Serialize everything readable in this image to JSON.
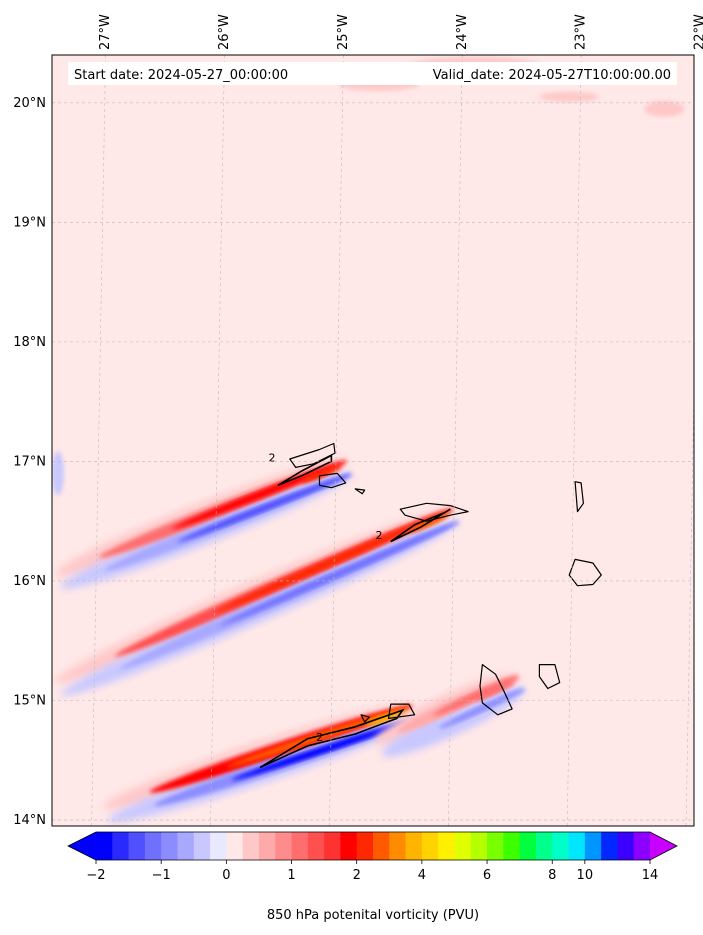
{
  "chart_data": {
    "type": "heatmap",
    "title_left": "Start date: 2024-05-27_00:00:00",
    "title_right": "Valid_date: 2024-05-27T10:00:00.00",
    "x_axis": {
      "range": [
        -27.35,
        -21.95
      ],
      "ticks": [
        {
          "value": -27,
          "label": "27°W"
        },
        {
          "value": -26,
          "label": "26°W"
        },
        {
          "value": -25,
          "label": "25°W"
        },
        {
          "value": -24,
          "label": "24°W"
        },
        {
          "value": -23,
          "label": "23°W"
        },
        {
          "value": -22,
          "label": "22°W"
        }
      ]
    },
    "y_axis": {
      "range": [
        13.95,
        20.4
      ],
      "ticks": [
        {
          "value": 14,
          "label": "14°N"
        },
        {
          "value": 15,
          "label": "15°N"
        },
        {
          "value": 16,
          "label": "16°N"
        },
        {
          "value": 17,
          "label": "17°N"
        },
        {
          "value": 18,
          "label": "18°N"
        },
        {
          "value": 19,
          "label": "19°N"
        },
        {
          "value": 20,
          "label": "20°N"
        }
      ]
    },
    "grid": true,
    "colorbar": {
      "label": "850 hPa potenital vorticity (PVU)",
      "orientation": "horizontal",
      "extend": "both",
      "levels": [
        -2,
        -1.75,
        -1.5,
        -1.25,
        -1,
        -0.75,
        -0.5,
        -0.25,
        0,
        0.25,
        0.5,
        0.75,
        1,
        1.25,
        1.5,
        1.75,
        2,
        2.5,
        3,
        3.5,
        4,
        4.5,
        5,
        5.5,
        6,
        6.5,
        7,
        7.5,
        8,
        9,
        10,
        11,
        12,
        13,
        14
      ],
      "colors": [
        "#0000ff",
        "#2a2aff",
        "#5050ff",
        "#7070ff",
        "#8c8cff",
        "#a8a8ff",
        "#c8c8ff",
        "#e8e8ff",
        "#ffe8e8",
        "#ffc8c8",
        "#ffaaaa",
        "#ff8c8c",
        "#ff6e6e",
        "#ff5050",
        "#ff3232",
        "#ff0000",
        "#ff2800",
        "#ff5a00",
        "#ff8c00",
        "#ffb400",
        "#ffd200",
        "#fff000",
        "#e0ff00",
        "#b4ff00",
        "#78ff00",
        "#3cff00",
        "#00ff3c",
        "#00ff8c",
        "#00ffc8",
        "#00e6ff",
        "#0096ff",
        "#0028ff",
        "#3c00ff",
        "#8c00ff"
      ],
      "under_color": "#0000ff",
      "over_color": "#c800ff",
      "tick_labels": [
        {
          "value": -2,
          "label": "−2"
        },
        {
          "value": -1,
          "label": "−1"
        },
        {
          "value": 0,
          "label": "0"
        },
        {
          "value": 1,
          "label": "1"
        },
        {
          "value": 2,
          "label": "2"
        },
        {
          "value": 4,
          "label": "4"
        },
        {
          "value": 6,
          "label": "6"
        },
        {
          "value": 8,
          "label": "8"
        },
        {
          "value": 10,
          "label": "10"
        },
        {
          "value": 14,
          "label": "14"
        }
      ]
    },
    "background_value": 0.1,
    "features": [
      {
        "name": "wake-santo-antao",
        "island_lon": -24.85,
        "island_lat": 16.95,
        "tail_lon": -27.3,
        "tail_lat": 16.0,
        "positive_peak": 2.2,
        "negative_peak": -1.5
      },
      {
        "name": "wake-sao-nicolau",
        "island_lon": -23.95,
        "island_lat": 16.55,
        "tail_lon": -27.3,
        "tail_lat": 15.1,
        "positive_peak": 2.5,
        "negative_peak": -1.3
      },
      {
        "name": "wake-santiago-fogo",
        "island_lon": -24.3,
        "island_lat": 14.9,
        "tail_lon": -26.9,
        "tail_lat": 14.05,
        "positive_peak": 3.5,
        "negative_peak": -2.0
      },
      {
        "name": "wake-maio",
        "island_lon": -23.4,
        "island_lat": 15.15,
        "tail_lon": -24.6,
        "tail_lat": 14.6,
        "positive_peak": 1.2,
        "negative_peak": -1.0
      }
    ],
    "contour_label": "2",
    "islands": [
      {
        "name": "Santo Antao",
        "points": [
          [
            -25.35,
            17.02
          ],
          [
            -25.1,
            17.1
          ],
          [
            -24.98,
            17.15
          ],
          [
            -24.97,
            17.07
          ],
          [
            -25.15,
            16.98
          ],
          [
            -25.3,
            16.95
          ]
        ]
      },
      {
        "name": "Sao Vicente",
        "points": [
          [
            -25.1,
            16.88
          ],
          [
            -24.95,
            16.9
          ],
          [
            -24.88,
            16.82
          ],
          [
            -25.0,
            16.78
          ],
          [
            -25.1,
            16.8
          ]
        ]
      },
      {
        "name": "Santa Luzia",
        "points": [
          [
            -24.8,
            16.77
          ],
          [
            -24.72,
            16.76
          ],
          [
            -24.74,
            16.73
          ]
        ]
      },
      {
        "name": "Sao Nicolau",
        "points": [
          [
            -24.42,
            16.6
          ],
          [
            -24.2,
            16.65
          ],
          [
            -24.0,
            16.63
          ],
          [
            -23.85,
            16.58
          ],
          [
            -24.0,
            16.55
          ],
          [
            -24.2,
            16.5
          ],
          [
            -24.38,
            16.55
          ]
        ]
      },
      {
        "name": "Sal",
        "points": [
          [
            -22.95,
            16.83
          ],
          [
            -22.9,
            16.82
          ],
          [
            -22.88,
            16.65
          ],
          [
            -22.93,
            16.58
          ]
        ]
      },
      {
        "name": "Boa Vista",
        "points": [
          [
            -22.95,
            16.18
          ],
          [
            -22.8,
            16.15
          ],
          [
            -22.73,
            16.05
          ],
          [
            -22.8,
            15.97
          ],
          [
            -22.93,
            15.96
          ],
          [
            -23.0,
            16.05
          ]
        ]
      },
      {
        "name": "Santiago",
        "points": [
          [
            -23.73,
            15.3
          ],
          [
            -23.62,
            15.22
          ],
          [
            -23.55,
            15.08
          ],
          [
            -23.48,
            14.93
          ],
          [
            -23.6,
            14.88
          ],
          [
            -23.73,
            14.98
          ],
          [
            -23.75,
            15.12
          ]
        ]
      },
      {
        "name": "Maio",
        "points": [
          [
            -23.25,
            15.3
          ],
          [
            -23.12,
            15.3
          ],
          [
            -23.08,
            15.15
          ],
          [
            -23.18,
            15.1
          ],
          [
            -23.25,
            15.2
          ]
        ]
      },
      {
        "name": "Fogo",
        "points": [
          [
            -24.5,
            14.97
          ],
          [
            -24.35,
            14.97
          ],
          [
            -24.3,
            14.88
          ],
          -24.4,
          [
            -24.52,
            14.85
          ]
        ]
      },
      {
        "name": "Brava",
        "points": [
          [
            -24.75,
            14.88
          ],
          [
            -24.68,
            14.86
          ],
          [
            -24.72,
            14.82
          ]
        ]
      }
    ]
  }
}
